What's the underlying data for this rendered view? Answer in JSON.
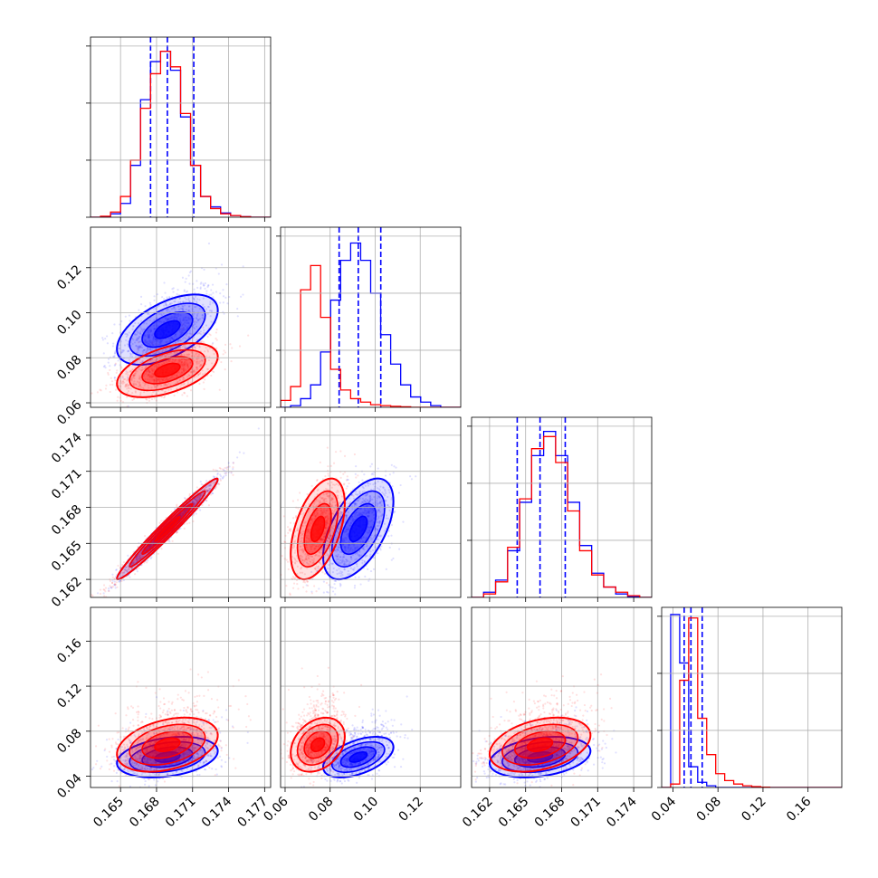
{
  "chart_data": {
    "type": "corner",
    "title": "",
    "grid": true,
    "colors": {
      "blue": "#0000ff",
      "red": "#ff0000"
    },
    "parameters": [
      {
        "range": [
          0.1625,
          0.1775
        ],
        "ticks": [
          0.165,
          0.168,
          0.171,
          0.174,
          0.177
        ],
        "tick_labels": [
          "0.165",
          "0.168",
          "0.171",
          "0.174",
          "0.177"
        ]
      },
      {
        "range": [
          0.058,
          0.138
        ],
        "ticks": [
          0.06,
          0.08,
          0.1,
          0.12
        ],
        "tick_labels": [
          "0.06",
          "0.08",
          "0.10",
          "0.12"
        ]
      },
      {
        "range": [
          0.1605,
          0.1755
        ],
        "ticks": [
          0.162,
          0.165,
          0.168,
          0.171,
          0.174
        ],
        "tick_labels": [
          "0.162",
          "0.165",
          "0.168",
          "0.171",
          "0.174"
        ]
      },
      {
        "range": [
          0.03,
          0.19
        ],
        "ticks": [
          0.04,
          0.08,
          0.12,
          0.16
        ],
        "tick_labels": [
          "0.04",
          "0.08",
          "0.12",
          "0.16"
        ]
      }
    ],
    "series": [
      {
        "color": "blue",
        "mean": [
          0.1689,
          0.0925,
          0.1662,
          0.057
        ],
        "sd": [
          0.0021,
          0.0078,
          0.0021,
          0.009
        ],
        "corr": [
          [
            0,
            1,
            0.55
          ],
          [
            0,
            2,
            0.98
          ],
          [
            0,
            3,
            0.3
          ],
          [
            1,
            2,
            0.55
          ],
          [
            1,
            3,
            0.5
          ],
          [
            2,
            3,
            0.3
          ]
        ],
        "quantiles": [
          [
            0.1675,
            0.1689,
            0.1711
          ],
          [
            0.084,
            0.0925,
            0.1025
          ],
          [
            0.1643,
            0.1662,
            0.1683
          ],
          [
            0.05,
            0.056,
            0.066
          ]
        ],
        "histograms": [
          [
            0,
            0.003,
            0.02,
            0.08,
            0.3,
            0.68,
            0.9,
            0.96,
            0.85,
            0.58,
            0.3,
            0.12,
            0.06,
            0.025,
            0.01,
            0.003,
            0,
            0
          ],
          [
            0,
            0.01,
            0.05,
            0.13,
            0.32,
            0.62,
            0.85,
            0.95,
            0.85,
            0.66,
            0.42,
            0.25,
            0.13,
            0.06,
            0.03,
            0.01,
            0,
            0
          ],
          [
            0,
            0.03,
            0.1,
            0.27,
            0.55,
            0.82,
            0.96,
            0.82,
            0.55,
            0.3,
            0.14,
            0.06,
            0.02,
            0.005,
            0
          ],
          [
            0,
            1,
            0.72,
            0.12,
            0.03,
            0.01,
            0,
            0,
            0,
            0,
            0,
            0,
            0,
            0,
            0,
            0,
            0,
            0,
            0,
            0
          ]
        ]
      },
      {
        "color": "red",
        "mean": [
          0.1689,
          0.0745,
          0.1662,
          0.068
        ],
        "sd": [
          0.0021,
          0.006,
          0.0021,
          0.012
        ],
        "corr": [
          [
            0,
            1,
            0.5
          ],
          [
            0,
            2,
            0.98
          ],
          [
            0,
            3,
            0.35
          ],
          [
            1,
            2,
            0.5
          ],
          [
            1,
            3,
            0.3
          ],
          [
            2,
            3,
            0.35
          ]
        ],
        "quantiles": [],
        "histograms": [
          [
            0,
            0.006,
            0.03,
            0.12,
            0.33,
            0.63,
            0.83,
            0.96,
            0.87,
            0.6,
            0.3,
            0.12,
            0.05,
            0.02,
            0.01,
            0.003,
            0,
            0
          ],
          [
            0.04,
            0.12,
            0.68,
            0.82,
            0.52,
            0.22,
            0.1,
            0.05,
            0.03,
            0.015,
            0.01,
            0.006,
            0.003,
            0,
            0,
            0,
            0,
            0
          ],
          [
            0,
            0.02,
            0.09,
            0.29,
            0.57,
            0.86,
            0.93,
            0.78,
            0.5,
            0.27,
            0.13,
            0.06,
            0.03,
            0.01,
            0
          ],
          [
            0,
            0.02,
            0.62,
            0.98,
            0.4,
            0.19,
            0.08,
            0.04,
            0.02,
            0.01,
            0.005,
            0.002,
            0,
            0,
            0,
            0,
            0,
            0,
            0,
            0
          ]
        ]
      }
    ]
  }
}
